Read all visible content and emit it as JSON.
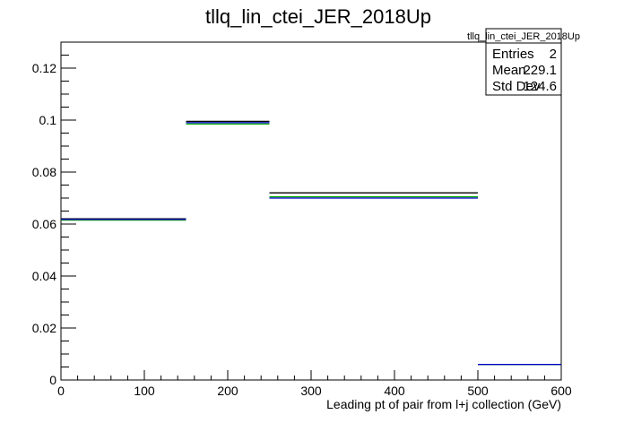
{
  "chart_data": {
    "type": "step",
    "title": "tllq_lin_ctei_JER_2018Up",
    "xlabel": "Leading pt of pair from l+j collection (GeV)",
    "ylabel": "",
    "xlim": [
      0,
      600
    ],
    "ylim": [
      0,
      0.13
    ],
    "x_ticks": [
      0,
      100,
      200,
      300,
      400,
      500,
      600
    ],
    "y_ticks": [
      0,
      0.02,
      0.04,
      0.06,
      0.08,
      0.1,
      0.12
    ],
    "x_tick_labels": [
      "0",
      "100",
      "200",
      "300",
      "400",
      "500",
      "600"
    ],
    "y_tick_labels": [
      "0",
      "0.02",
      "0.04",
      "0.06",
      "0.08",
      "0.1",
      "0.12"
    ],
    "bin_edges": [
      0,
      150,
      250,
      500,
      600
    ],
    "series": [
      {
        "color": "#000000",
        "values": [
          0.062,
          0.0995,
          0.072,
          0.006
        ]
      },
      {
        "color": "#00aa00",
        "values": [
          0.0615,
          0.0985,
          0.0705,
          0.006
        ]
      },
      {
        "color": "#0000cc",
        "values": [
          0.0618,
          0.099,
          0.07,
          0.006
        ]
      }
    ],
    "grid": false,
    "stats_box": {
      "title": "tllq_lin_ctei_JER_2018Up",
      "rows": [
        {
          "label": "Entries",
          "value": "2"
        },
        {
          "label": "Mean",
          "value": "229.1"
        },
        {
          "label": "Std Dev",
          "value": "124.6"
        }
      ]
    }
  }
}
